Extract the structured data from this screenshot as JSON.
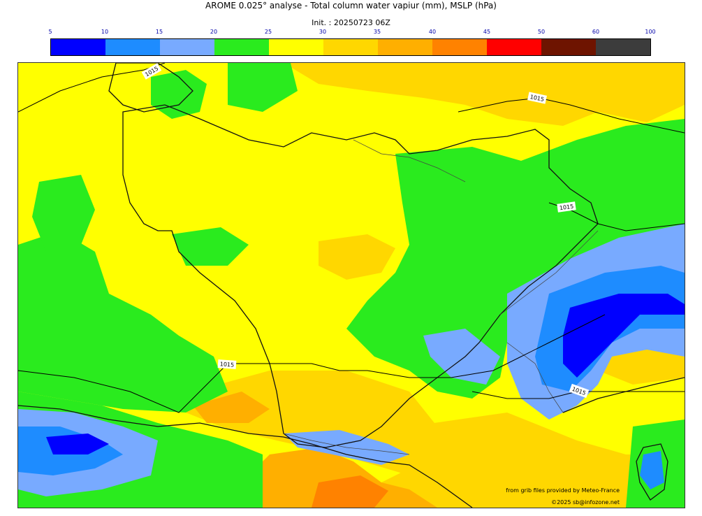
{
  "header": {
    "title": "AROME 0.025° analyse - Total column water vapiur (mm), MSLP (hPa)",
    "subtitle": "Init. : 20250723 06Z"
  },
  "colorbar": {
    "ticks": [
      "5",
      "10",
      "15",
      "20",
      "25",
      "30",
      "35",
      "40",
      "45",
      "50",
      "60",
      "100"
    ],
    "colors": [
      "#0000ff",
      "#1e8cff",
      "#78aaff",
      "#2aeb1e",
      "#ffff00",
      "#ffd700",
      "#ffaf00",
      "#ff8200",
      "#ff0000",
      "#6e1400",
      "#3c3c3c"
    ]
  },
  "map": {
    "isobar_labels": [
      "1015",
      "1015",
      "1015",
      "1015",
      "1015"
    ],
    "colors": {
      "background": "#ffff00",
      "green": "#2aeb1e",
      "light_blue": "#78aaff",
      "mid_blue": "#1e8cff",
      "blue": "#0000ff",
      "gold": "#ffd700",
      "orange": "#ffaf00",
      "dark_orange": "#ff8200"
    }
  },
  "credits": {
    "source": "from grib files provided by Meteo-France",
    "copyright": "©2025 sb@infozone.net"
  }
}
